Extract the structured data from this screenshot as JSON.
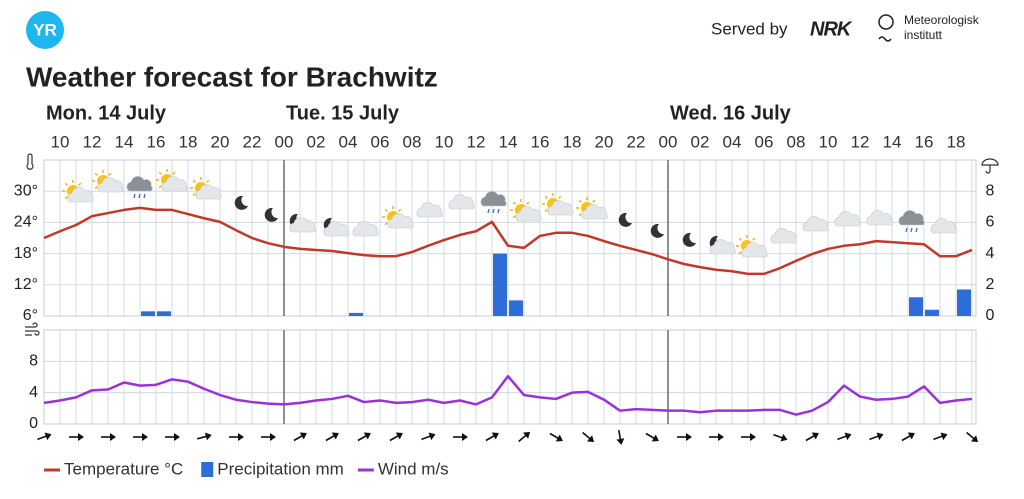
{
  "header": {
    "logo": "YR",
    "served_by": "Served by",
    "nrk": "NRK",
    "met": [
      "Meteorologisk",
      "institutt"
    ]
  },
  "chart_data": {
    "type": "meteogram",
    "title": "Weather forecast for Brachwitz",
    "days": [
      "Mon. 14 July",
      "Tue. 15 July",
      "Wed. 16 July"
    ],
    "categories": [
      null,
      "10",
      null,
      "12",
      null,
      "14",
      null,
      "16",
      null,
      "18",
      null,
      "20",
      null,
      "22",
      null,
      "00",
      null,
      "02",
      null,
      "04",
      null,
      "06",
      null,
      "08",
      null,
      "10",
      null,
      "12",
      null,
      "14",
      null,
      "16",
      null,
      "18",
      null,
      "20",
      null,
      "22",
      null,
      "00",
      null,
      "02",
      null,
      "04",
      null,
      "06",
      null,
      "08",
      null,
      "10",
      null,
      "12",
      null,
      "14",
      null,
      "16",
      null,
      "18",
      null
    ],
    "series": [
      {
        "name": "Temperature °C",
        "color": "#c0392b",
        "values": [
          21.0,
          22.3,
          23.5,
          25.2,
          25.8,
          26.4,
          26.8,
          26.4,
          26.4,
          25.6,
          24.8,
          24.1,
          22.5,
          21.0,
          20.0,
          19.3,
          18.9,
          18.7,
          18.5,
          18.1,
          17.7,
          17.5,
          17.5,
          18.3,
          19.5,
          20.6,
          21.6,
          22.3,
          24.1,
          19.5,
          19.1,
          21.4,
          22.0,
          22.0,
          21.4,
          20.4,
          19.5,
          18.7,
          17.9,
          16.9,
          16.0,
          15.4,
          14.9,
          14.6,
          14.1,
          14.1,
          15.2,
          16.6,
          17.9,
          18.9,
          19.5,
          19.8,
          20.4,
          20.2,
          20.0,
          19.8,
          17.5,
          17.5,
          18.7
        ]
      },
      {
        "name": "Precipitation mm",
        "color": "#2f6ed8",
        "axis": "y2",
        "values": [
          0,
          0,
          0,
          0,
          0,
          0,
          0.3,
          0.3,
          0,
          0,
          0,
          0,
          0,
          0,
          0,
          0,
          0,
          0,
          0,
          0.2,
          0,
          0,
          0,
          0,
          0,
          0,
          0,
          0,
          4.0,
          1.0,
          0,
          0,
          0,
          0,
          0,
          0,
          0,
          0,
          0,
          0,
          0,
          0,
          0,
          0,
          0,
          0,
          0,
          0,
          0,
          0,
          0,
          0,
          0,
          0,
          1.2,
          0.4,
          0,
          1.7,
          0
        ]
      },
      {
        "name": "Wind m/s",
        "color": "#9b32d6",
        "panel": "wind",
        "values": [
          2.7,
          3.0,
          3.4,
          4.3,
          4.4,
          5.3,
          4.9,
          5.0,
          5.7,
          5.4,
          4.5,
          3.7,
          3.1,
          2.8,
          2.6,
          2.5,
          2.7,
          3.0,
          3.2,
          3.6,
          2.8,
          3.0,
          2.7,
          2.8,
          3.1,
          2.7,
          3.0,
          2.5,
          3.4,
          6.1,
          3.7,
          3.4,
          3.2,
          4.0,
          4.1,
          3.1,
          1.7,
          1.9,
          1.8,
          1.7,
          1.7,
          1.5,
          1.7,
          1.7,
          1.7,
          1.8,
          1.8,
          1.2,
          1.7,
          2.8,
          4.9,
          3.5,
          3.1,
          3.2,
          3.5,
          4.8,
          2.7,
          3.0,
          3.2
        ]
      }
    ],
    "ylim": [
      6,
      36
    ],
    "yticks": [
      {
        "value": 6,
        "label": "6°"
      },
      {
        "value": 12,
        "label": "12°"
      },
      {
        "value": 18,
        "label": "18°"
      },
      {
        "value": 24,
        "label": "24°"
      },
      {
        "value": 30,
        "label": "30°"
      }
    ],
    "y2lim": [
      0,
      10
    ],
    "y2ticks": [
      0,
      2,
      4,
      6,
      8
    ],
    "wind_ylim": [
      0,
      12
    ],
    "wind_yticks": [
      0,
      4,
      8
    ],
    "wind_direction": [
      -20,
      null,
      0,
      null,
      0,
      null,
      0,
      null,
      0,
      null,
      -15,
      null,
      0,
      null,
      0,
      null,
      -30,
      null,
      -30,
      null,
      -30,
      null,
      -30,
      null,
      -20,
      null,
      0,
      null,
      -30,
      null,
      -40,
      null,
      30,
      null,
      40,
      null,
      80,
      null,
      30,
      null,
      0,
      null,
      0,
      null,
      0,
      null,
      20,
      null,
      -30,
      null,
      -20,
      null,
      -20,
      null,
      -30,
      null,
      -20,
      null,
      40
    ],
    "grid": true
  }
}
